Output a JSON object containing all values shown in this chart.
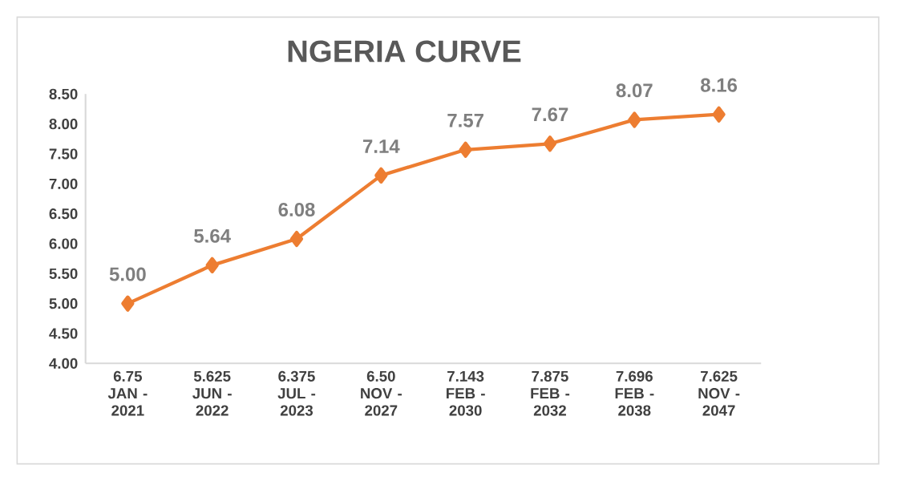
{
  "chart_data": {
    "type": "line",
    "title": "NGERIA CURVE",
    "categories": [
      "6.75 JAN - 2021",
      "5.625 JUN - 2022",
      "6.375 JUL - 2023",
      "6.50 NOV - 2027",
      "7.143 FEB - 2030",
      "7.875 FEB - 2032",
      "7.696 FEB - 2038",
      "7.625 NOV - 2047"
    ],
    "series": [
      {
        "color": "#ed7d31",
        "values": [
          5.0,
          5.64,
          6.08,
          7.14,
          7.57,
          7.67,
          8.07,
          8.16
        ],
        "value_labels": [
          "5.00",
          "5.64",
          "6.08",
          "7.14",
          "7.57",
          "7.67",
          "8.07",
          "8.16"
        ]
      }
    ],
    "ylim": [
      4,
      8.5
    ],
    "yticks": [
      {
        "value": 4,
        "label": "4.00"
      },
      {
        "value": 4.5,
        "label": "4.50"
      },
      {
        "value": 5,
        "label": "5.00"
      },
      {
        "value": 5.5,
        "label": "5.50"
      },
      {
        "value": 6,
        "label": "6.00"
      },
      {
        "value": 6.5,
        "label": "6.50"
      },
      {
        "value": 7,
        "label": "7.00"
      },
      {
        "value": 7.5,
        "label": "7.50"
      },
      {
        "value": 8,
        "label": "8.00"
      },
      {
        "value": 8.5,
        "label": "8.50"
      }
    ],
    "grid": false,
    "legend": false,
    "marker": "diamond",
    "line_style": "solid"
  }
}
